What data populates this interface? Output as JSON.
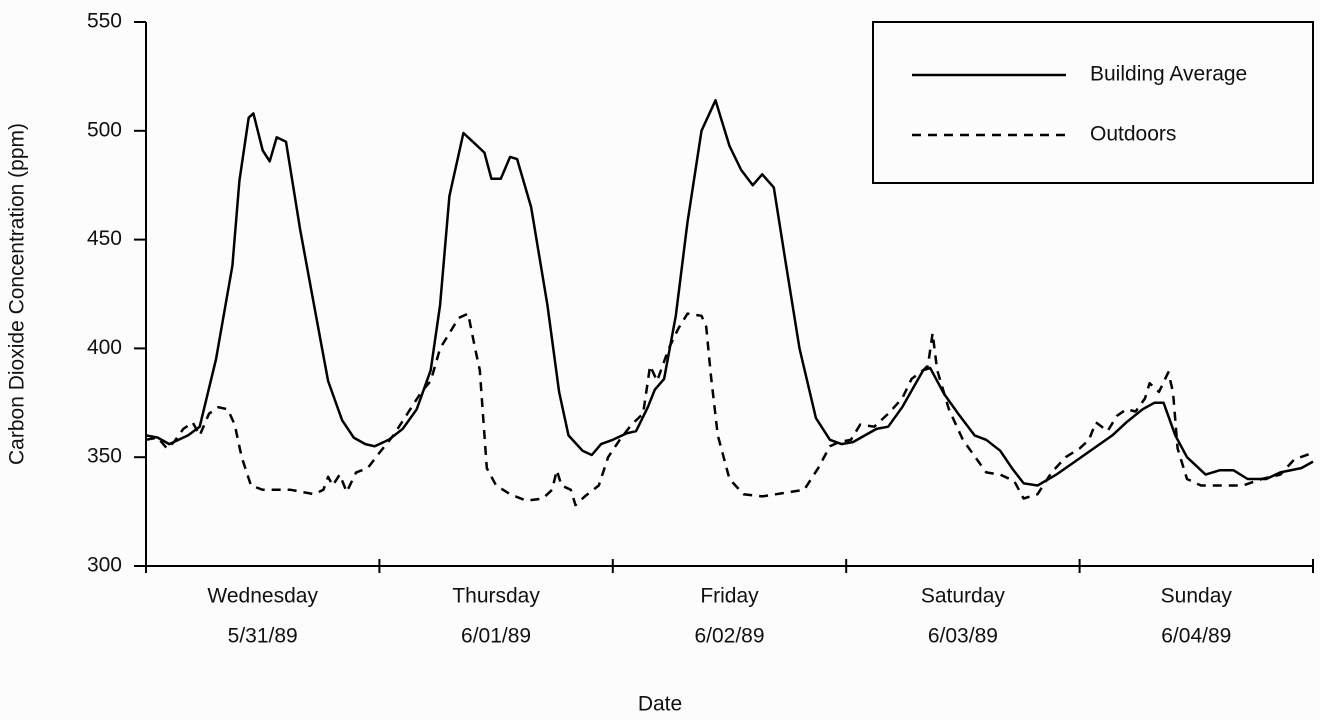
{
  "chart_data": {
    "type": "line",
    "y_label": "Carbon Dioxide Concentration (ppm)",
    "x_label": "Date",
    "categories": [
      "Wednesday",
      "Thursday",
      "Friday",
      "Saturday",
      "Sunday"
    ],
    "dates": [
      "5/31/89",
      "6/01/89",
      "6/02/89",
      "6/03/89",
      "6/04/89"
    ],
    "xlim": [
      0,
      5
    ],
    "xticks": [
      0,
      1,
      2,
      3,
      4,
      5
    ],
    "ylim": [
      300,
      550
    ],
    "yticks": [
      300,
      350,
      400,
      450,
      500,
      550
    ],
    "legend": "upper right",
    "series": [
      {
        "name": "Building Average",
        "color": "#000000",
        "style": "solid",
        "x": [
          0.0,
          0.05,
          0.1,
          0.18,
          0.23,
          0.3,
          0.37,
          0.4,
          0.44,
          0.46,
          0.5,
          0.53,
          0.56,
          0.6,
          0.66,
          0.72,
          0.78,
          0.84,
          0.89,
          0.94,
          0.98,
          1.04,
          1.1,
          1.16,
          1.22,
          1.26,
          1.3,
          1.36,
          1.4,
          1.45,
          1.48,
          1.52,
          1.56,
          1.59,
          1.65,
          1.72,
          1.77,
          1.81,
          1.87,
          1.91,
          1.95,
          2.0,
          2.06,
          2.1,
          2.15,
          2.18,
          2.22,
          2.27,
          2.32,
          2.38,
          2.44,
          2.5,
          2.55,
          2.6,
          2.64,
          2.69,
          2.74,
          2.8,
          2.87,
          2.93,
          2.98,
          3.03,
          3.08,
          3.13,
          3.18,
          3.24,
          3.33,
          3.36,
          3.42,
          3.48,
          3.55,
          3.6,
          3.66,
          3.71,
          3.76,
          3.82,
          3.9,
          3.98,
          4.06,
          4.14,
          4.2,
          4.27,
          4.32,
          4.36,
          4.41,
          4.46,
          4.54,
          4.6,
          4.66,
          4.72,
          4.8,
          4.86,
          4.95,
          5.0
        ],
        "values": [
          360,
          359,
          356,
          360,
          364,
          395,
          438,
          477,
          506,
          508,
          491,
          486,
          497,
          495,
          455,
          420,
          385,
          367,
          359,
          356,
          355,
          358,
          363,
          372,
          390,
          420,
          470,
          499,
          495,
          490,
          478,
          478,
          488,
          487,
          465,
          420,
          380,
          360,
          353,
          351,
          356,
          358,
          361,
          362,
          373,
          381,
          386,
          415,
          458,
          500,
          514,
          493,
          482,
          475,
          480,
          474,
          440,
          400,
          368,
          358,
          356,
          357,
          360,
          363,
          364,
          373,
          390,
          391,
          379,
          370,
          360,
          358,
          353,
          345,
          338,
          337,
          342,
          348,
          354,
          360,
          366,
          372,
          375,
          375,
          360,
          350,
          342,
          344,
          344,
          340,
          340,
          343,
          345,
          348
        ]
      },
      {
        "name": "Outdoors",
        "color": "#000000",
        "style": "dashed",
        "x": [
          0.0,
          0.05,
          0.09,
          0.12,
          0.16,
          0.2,
          0.23,
          0.27,
          0.31,
          0.35,
          0.38,
          0.41,
          0.45,
          0.5,
          0.56,
          0.62,
          0.72,
          0.76,
          0.78,
          0.8,
          0.83,
          0.86,
          0.9,
          0.95,
          1.0,
          1.06,
          1.12,
          1.18,
          1.22,
          1.26,
          1.3,
          1.34,
          1.38,
          1.41,
          1.43,
          1.46,
          1.5,
          1.56,
          1.63,
          1.7,
          1.74,
          1.76,
          1.78,
          1.82,
          1.84,
          1.88,
          1.94,
          1.98,
          2.03,
          2.08,
          2.13,
          2.16,
          2.19,
          2.24,
          2.28,
          2.32,
          2.38,
          2.4,
          2.42,
          2.45,
          2.5,
          2.56,
          2.64,
          2.7,
          2.76,
          2.82,
          2.88,
          2.93,
          2.97,
          3.02,
          3.06,
          3.12,
          3.18,
          3.24,
          3.28,
          3.33,
          3.35,
          3.37,
          3.39,
          3.44,
          3.5,
          3.56,
          3.6,
          3.66,
          3.72,
          3.76,
          3.82,
          3.88,
          3.94,
          4.0,
          4.04,
          4.07,
          4.12,
          4.16,
          4.2,
          4.24,
          4.28,
          4.3,
          4.34,
          4.38,
          4.4,
          4.42,
          4.46,
          4.52,
          4.6,
          4.7,
          4.78,
          4.86,
          4.92,
          5.0
        ],
        "values": [
          358,
          359,
          354,
          357,
          363,
          366,
          360,
          370,
          373,
          372,
          365,
          350,
          337,
          335,
          335,
          335,
          333,
          335,
          341,
          337,
          342,
          334,
          343,
          345,
          352,
          360,
          370,
          380,
          385,
          400,
          407,
          414,
          416,
          400,
          390,
          345,
          337,
          333,
          330,
          331,
          335,
          344,
          337,
          335,
          328,
          332,
          337,
          350,
          358,
          365,
          370,
          392,
          385,
          400,
          409,
          416,
          415,
          410,
          388,
          360,
          340,
          333,
          332,
          333,
          334,
          335,
          345,
          355,
          357,
          358,
          365,
          364,
          370,
          377,
          386,
          390,
          392,
          407,
          390,
          372,
          358,
          349,
          343,
          342,
          339,
          331,
          333,
          343,
          350,
          354,
          358,
          366,
          362,
          369,
          372,
          371,
          377,
          384,
          380,
          389,
          380,
          354,
          340,
          337,
          337,
          337,
          340,
          342,
          349,
          352
        ]
      }
    ]
  }
}
